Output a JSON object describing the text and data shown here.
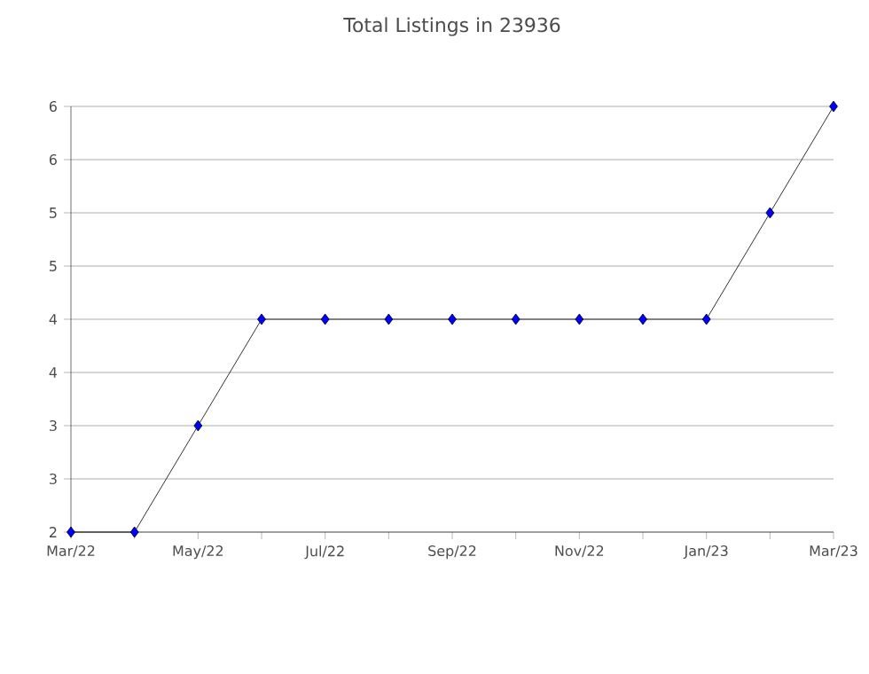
{
  "chart_data": {
    "type": "line",
    "title": "Total Listings in 23936",
    "x": [
      "2022-03",
      "2022-04",
      "2022-05",
      "2022-06",
      "2022-07",
      "2022-08",
      "2022-09",
      "2022-10",
      "2022-11",
      "2022-12",
      "2023-01",
      "2023-02",
      "2023-03"
    ],
    "series": [
      {
        "color": "#0000ff",
        "values": [
          2,
          2,
          3,
          4,
          4,
          4,
          4,
          4,
          4,
          4,
          4,
          5,
          6
        ]
      }
    ],
    "xlim": [
      "2022-03",
      "2023-03"
    ],
    "xticks": [
      {
        "value": "2022-03",
        "label": "Mar/22"
      },
      {
        "value": "2022-04",
        "label": null
      },
      {
        "value": "2022-05",
        "label": "May/22"
      },
      {
        "value": "2022-06",
        "label": null
      },
      {
        "value": "2022-07",
        "label": "Jul/22"
      },
      {
        "value": "2022-08",
        "label": null
      },
      {
        "value": "2022-09",
        "label": "Sep/22"
      },
      {
        "value": "2022-10",
        "label": null
      },
      {
        "value": "2022-11",
        "label": "Nov/22"
      },
      {
        "value": "2022-12",
        "label": null
      },
      {
        "value": "2023-01",
        "label": "Jan/23"
      },
      {
        "value": "2023-02",
        "label": null
      },
      {
        "value": "2023-03",
        "label": "Mar/23"
      }
    ],
    "ylim": [
      2,
      6
    ],
    "yticks": [
      2,
      {
        "value": 2.5,
        "label": "3"
      },
      3,
      {
        "value": 3.5,
        "label": "4"
      },
      4,
      {
        "value": 4.5,
        "label": "5"
      },
      5,
      {
        "value": 5.5,
        "label": "6"
      },
      6
    ],
    "grid": "y",
    "marker": "diamond",
    "line_style": "solid"
  }
}
